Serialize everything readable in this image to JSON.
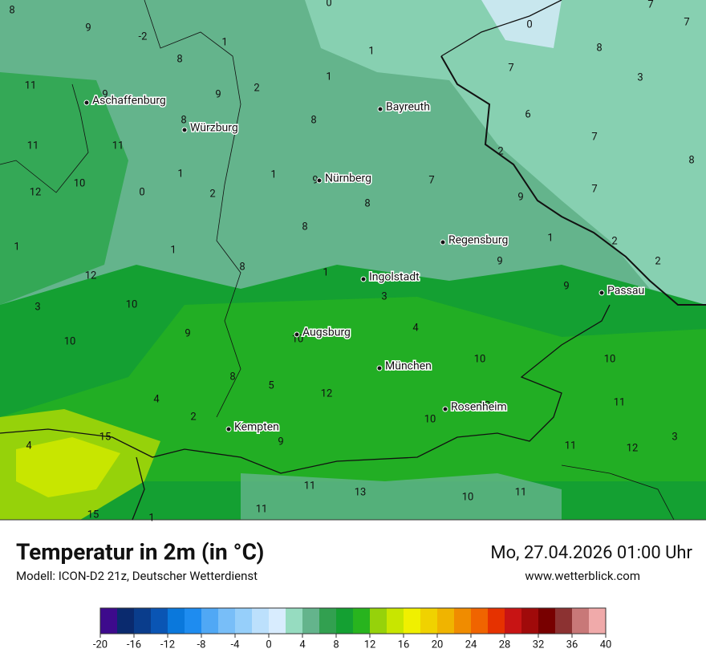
{
  "header": {
    "title": "Temperatur in 2m (in °C)",
    "model": "Modell: ICON-D2 21z, Deutscher Wetterdienst",
    "datetime": "Mo, 27.04.2026 01:00 Uhr",
    "website": "www.wetterblick.com"
  },
  "map": {
    "cities": [
      "Aschaffenburg",
      "Würzburg",
      "Bayreuth",
      "Nürnberg",
      "Regensburg",
      "Ingolstadt",
      "Passau",
      "Augsburg",
      "München",
      "Rosenheim",
      "Kempten"
    ],
    "values": [
      0,
      9,
      -2,
      1,
      8,
      1,
      0,
      7,
      7,
      8,
      7,
      3,
      1,
      11,
      9,
      9,
      2,
      8,
      8,
      8,
      6,
      11,
      11,
      2,
      7,
      8,
      12,
      10,
      0,
      1,
      1,
      2,
      9,
      7,
      7,
      8,
      9,
      1,
      1,
      8,
      8,
      1,
      2,
      9,
      2,
      12,
      1,
      3,
      9,
      3,
      10,
      9,
      10,
      4,
      10,
      8,
      5,
      12,
      10,
      10,
      4,
      2,
      11,
      10,
      12,
      15,
      9,
      11,
      12,
      3,
      4,
      11,
      13,
      11,
      10,
      15,
      11,
      1
    ]
  },
  "legend": {
    "ticks": [
      -20,
      -16,
      -12,
      -8,
      -4,
      0,
      4,
      8,
      12,
      16,
      20,
      24,
      28,
      32,
      36,
      40
    ],
    "colors": [
      "#3d0a8c",
      "#0a2a6e",
      "#0a3d8c",
      "#0a55b4",
      "#0a78dc",
      "#1e8cf0",
      "#50a8f5",
      "#78bef8",
      "#96cffa",
      "#bce0fc",
      "#d8ecfe",
      "#96dcc0",
      "#64b48c",
      "#32a050",
      "#14a032",
      "#28b41e",
      "#96d20a",
      "#c8e600",
      "#f0f000",
      "#f0d200",
      "#f0b400",
      "#f08c00",
      "#f06400",
      "#e63200",
      "#c81414",
      "#a00a0a",
      "#780000",
      "#8c3232",
      "#c87878",
      "#f0aaaa"
    ]
  }
}
